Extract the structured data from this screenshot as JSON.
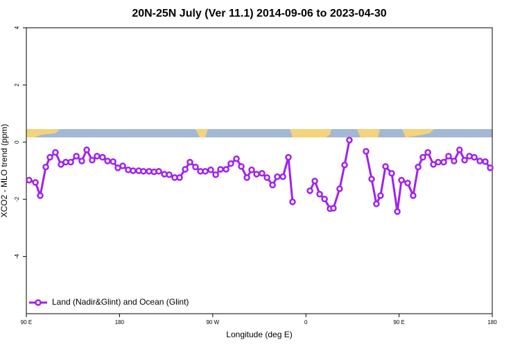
{
  "chart_data": {
    "type": "line",
    "title": "20N-25N July (Ver 11.1)   2014-09-06 to 2023-04-30",
    "x_label": "Longitude (deg E)",
    "y_label": "XCO2 - MLO trend (ppm)",
    "xlim": [
      90,
      540
    ],
    "ylim": [
      -6,
      4
    ],
    "xticks": [
      {
        "value": 90,
        "label": "90 E"
      },
      180,
      {
        "value": 270,
        "label": "90 W"
      },
      {
        "value": 360,
        "label": "0"
      },
      {
        "value": 450,
        "label": "90 E"
      },
      {
        "value": 540,
        "label": "180"
      }
    ],
    "yticks": [
      4,
      2,
      0,
      -2,
      -4
    ],
    "legend": "bottomleft",
    "x": [
      92.6,
      98.8,
      103.4,
      108.8,
      112.8,
      118.1,
      123.5,
      128.1,
      132.9,
      138.3,
      143.6,
      148.3,
      153.6,
      158.3,
      163.6,
      168.4,
      173.8,
      178.4,
      183.1,
      188.4,
      193.1,
      198.5,
      203.1,
      208.5,
      213.3,
      217.9,
      223.3,
      228,
      233.3,
      238,
      243.4,
      248,
      253.4,
      258.1,
      262.8,
      268.1,
      272.9,
      277.5,
      282.9,
      287.5,
      292.9,
      297.6,
      303,
      307.6,
      312.4,
      317.6,
      322.4,
      327.8,
      332.4,
      337.8,
      343.1,
      347.1,
      355,
      363.9,
      368.6,
      373.3,
      378,
      383.3,
      386.6,
      392.6,
      397.4,
      402,
      410,
      418.1,
      423.5,
      428.1,
      432.1,
      436.9,
      442.9,
      448.3,
      452.3,
      458.3,
      463.6,
      468.4,
      473,
      477.8,
      483.1,
      487.8,
      493.1,
      497.8,
      503.1,
      508.4,
      513.3,
      517.9,
      522.6,
      528,
      533.3,
      538
    ],
    "series": [
      {
        "name": "Land (Nadir&Glint) and Ocean (Glint)",
        "color": "#a020f0",
        "values": [
          -1.33,
          -1.41,
          -1.87,
          -0.87,
          -0.53,
          -0.36,
          -0.78,
          -0.7,
          -0.7,
          -0.49,
          -0.66,
          -0.27,
          -0.63,
          -0.49,
          -0.53,
          -0.66,
          -0.68,
          -0.9,
          -0.83,
          -0.97,
          -1.0,
          -1.0,
          -1.02,
          -1.02,
          -1.04,
          -1.02,
          -1.12,
          -1.14,
          -1.24,
          -1.24,
          -0.95,
          -0.7,
          -0.87,
          -1.02,
          -1.02,
          -0.97,
          -1.14,
          -0.95,
          -0.95,
          -0.75,
          -0.58,
          -0.85,
          -1.24,
          -0.97,
          -1.12,
          -1.09,
          -1.24,
          -1.5,
          -1.21,
          -1.21,
          -0.53,
          -2.09,
          null,
          -1.7,
          -1.36,
          -1.82,
          -1.99,
          -2.33,
          -2.31,
          -1.63,
          -0.8,
          0.07,
          null,
          -0.32,
          -1.29,
          -2.16,
          -1.87,
          -0.85,
          -1.09,
          -2.43,
          -1.33,
          -1.43,
          -1.87,
          -0.87,
          -0.53,
          -0.36,
          -0.78,
          -0.7,
          -0.7,
          -0.49,
          -0.66,
          -0.27,
          -0.63,
          -0.49,
          -0.53,
          -0.66,
          -0.68,
          -0.9
        ]
      }
    ]
  }
}
